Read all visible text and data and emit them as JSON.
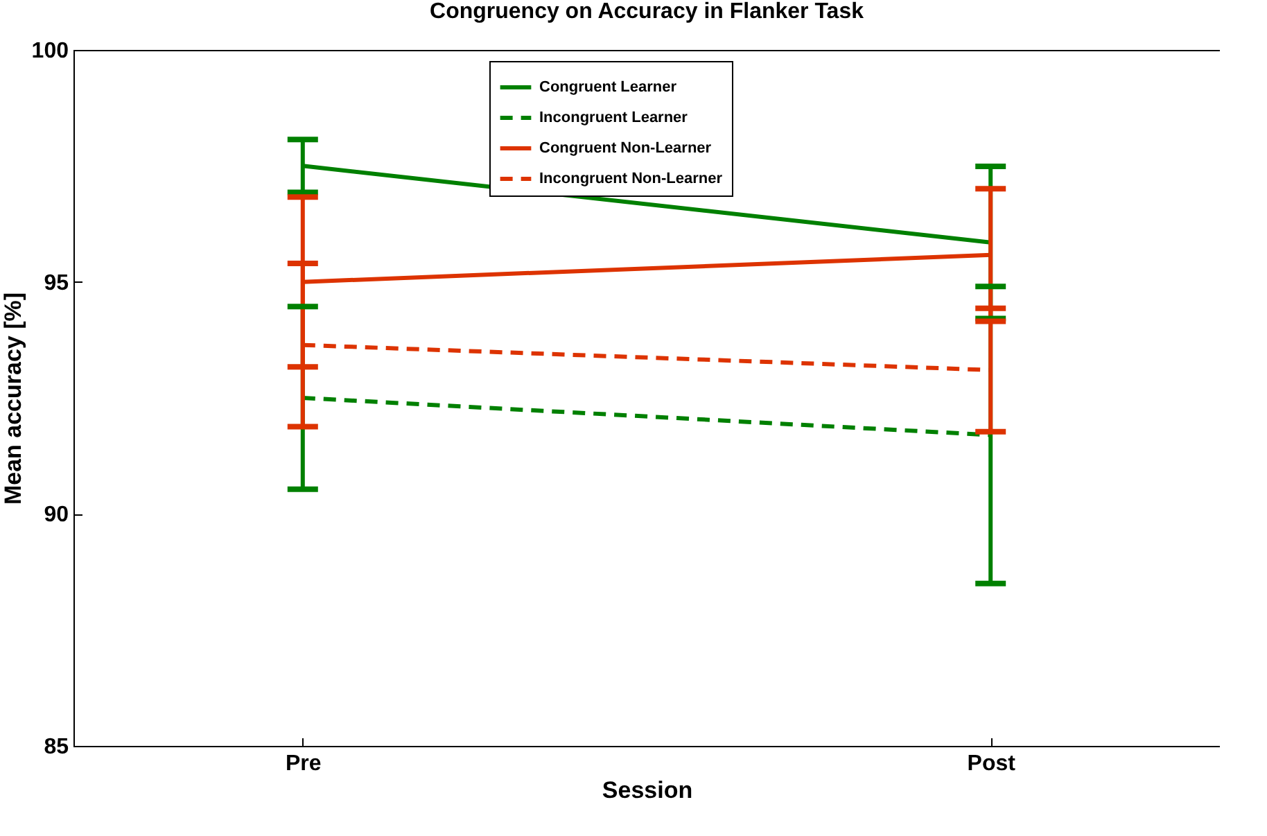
{
  "chart_data": {
    "type": "line",
    "title": "Congruency on Accuracy in Flanker Task",
    "xlabel": "Session",
    "ylabel": "Mean accuracy [%]",
    "categories": [
      "Pre",
      "Post"
    ],
    "ylim": [
      85,
      100
    ],
    "yticks": [
      85,
      90,
      95,
      100
    ],
    "legend": "top",
    "grid": false,
    "marker": "none",
    "series": [
      {
        "name": "Congruent Learner",
        "color": "#008000",
        "line_style": "solid",
        "values": [
          97.5,
          95.85
        ],
        "errors": [
          0.57,
          1.64
        ]
      },
      {
        "name": "Incongruent Learner",
        "color": "#008000",
        "line_style": "dashed",
        "values": [
          92.5,
          91.7
        ],
        "errors": [
          1.97,
          3.2
        ]
      },
      {
        "name": "Congruent Non-Learner",
        "color": "#dd3300",
        "line_style": "solid",
        "values": [
          95.0,
          95.58
        ],
        "errors": [
          1.83,
          1.43
        ]
      },
      {
        "name": "Incongruent Non-Learner",
        "color": "#dd3300",
        "line_style": "dashed",
        "values": [
          93.64,
          93.1
        ],
        "errors": [
          1.76,
          1.33
        ]
      }
    ]
  }
}
